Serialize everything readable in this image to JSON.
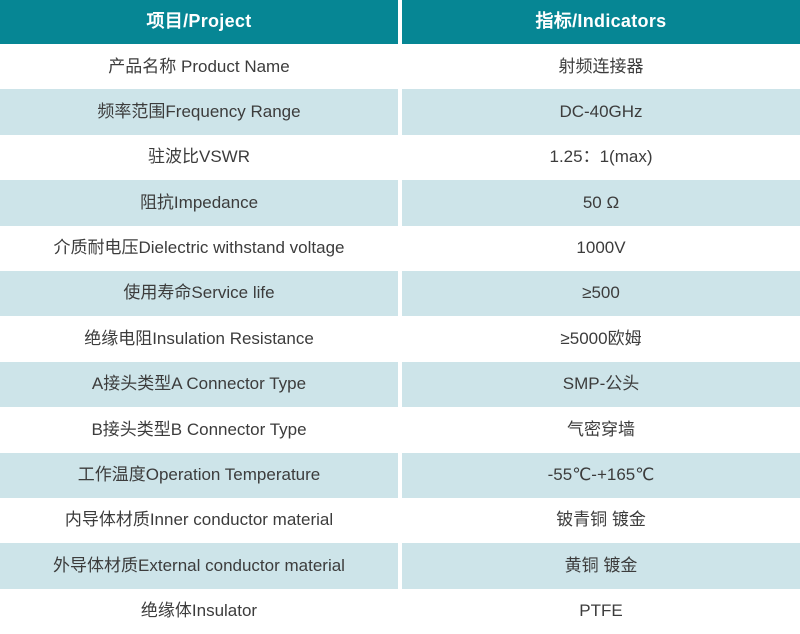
{
  "header": {
    "project": "项目/Project",
    "indicators": "指标/Indicators"
  },
  "colors": {
    "header_bg": "#068694",
    "header_text": "#ffffff",
    "row_bg": "#ffffff",
    "row_alt_bg": "#cde4e9",
    "body_text": "#3c3c3c",
    "divider": "#ffffff"
  },
  "table": {
    "rows": [
      {
        "project": "产品名称 Product Name",
        "indicator": "射频连接器"
      },
      {
        "project": "频率范围Frequency Range",
        "indicator": "DC-40GHz"
      },
      {
        "project": "驻波比VSWR",
        "indicator": "1.25：1(max)"
      },
      {
        "project": "阻抗Impedance",
        "indicator": "50 Ω"
      },
      {
        "project": "介质耐电压Dielectric withstand voltage",
        "indicator": "1000V"
      },
      {
        "project": "使用寿命Service life",
        "indicator": "≥500"
      },
      {
        "project": "绝缘电阻Insulation Resistance",
        "indicator": "≥5000欧姆"
      },
      {
        "project": "A接头类型A Connector Type",
        "indicator": "SMP-公头"
      },
      {
        "project": "B接头类型B Connector Type",
        "indicator": "气密穿墙"
      },
      {
        "project": "工作温度Operation Temperature",
        "indicator": "-55℃-+165℃"
      },
      {
        "project": "内导体材质Inner conductor material",
        "indicator": "铍青铜 镀金"
      },
      {
        "project": "外导体材质External conductor material",
        "indicator": "黄铜 镀金"
      },
      {
        "project": "绝缘体Insulator",
        "indicator": "PTFE"
      }
    ]
  }
}
